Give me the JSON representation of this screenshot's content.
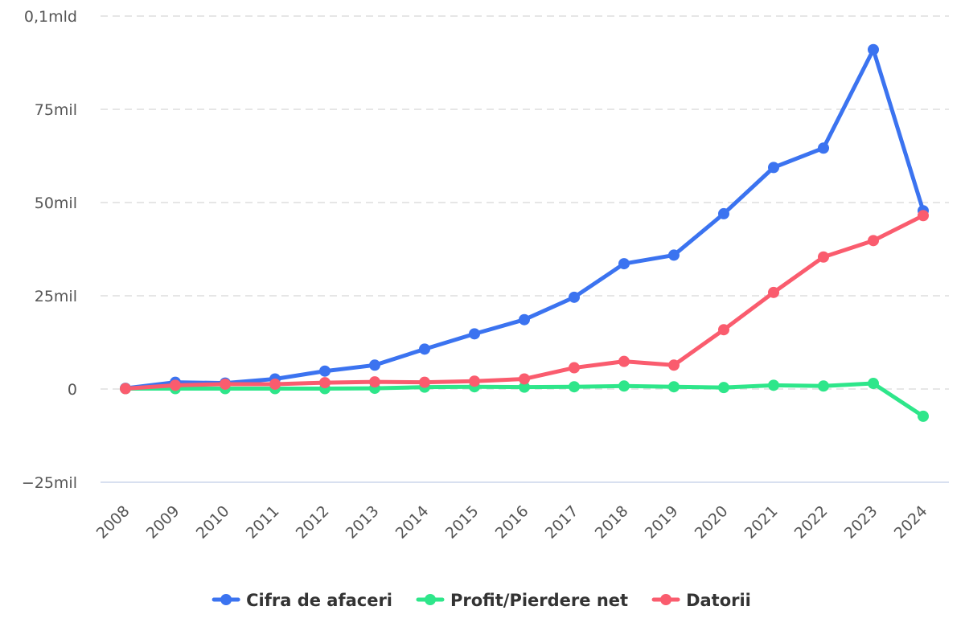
{
  "chart_data": {
    "type": "line",
    "x": [
      "2008",
      "2009",
      "2010",
      "2011",
      "2012",
      "2013",
      "2014",
      "2015",
      "2016",
      "2017",
      "2018",
      "2019",
      "2020",
      "2021",
      "2022",
      "2023",
      "2024"
    ],
    "series": [
      {
        "name": "Cifra de afaceri",
        "color": "#3b73f0",
        "values": [
          0.2,
          1.8,
          1.6,
          2.7,
          4.8,
          6.4,
          10.7,
          14.8,
          18.6,
          24.6,
          33.6,
          35.9,
          47.0,
          59.4,
          64.6,
          91.0,
          47.8
        ]
      },
      {
        "name": "Profit/Pierdere net",
        "color": "#2ee68a",
        "values": [
          0.1,
          0.1,
          0.1,
          0.1,
          0.1,
          0.2,
          0.5,
          0.6,
          0.5,
          0.6,
          0.8,
          0.6,
          0.4,
          1.0,
          0.8,
          1.5,
          -7.3
        ]
      },
      {
        "name": "Datorii",
        "color": "#fa5c6e",
        "values": [
          0.1,
          1.0,
          1.3,
          1.3,
          1.7,
          1.9,
          1.8,
          2.1,
          2.7,
          5.7,
          7.4,
          6.4,
          15.9,
          25.9,
          35.4,
          39.8,
          46.5
        ]
      }
    ],
    "yticks": [
      -25,
      0,
      25,
      50,
      75,
      100
    ],
    "ytick_labels": [
      "−25mil",
      "0",
      "25mil",
      "50mil",
      "75mil",
      "0,1mld"
    ],
    "ylim": [
      -25,
      100
    ],
    "grid": true,
    "legend_position": "bottom-center"
  }
}
